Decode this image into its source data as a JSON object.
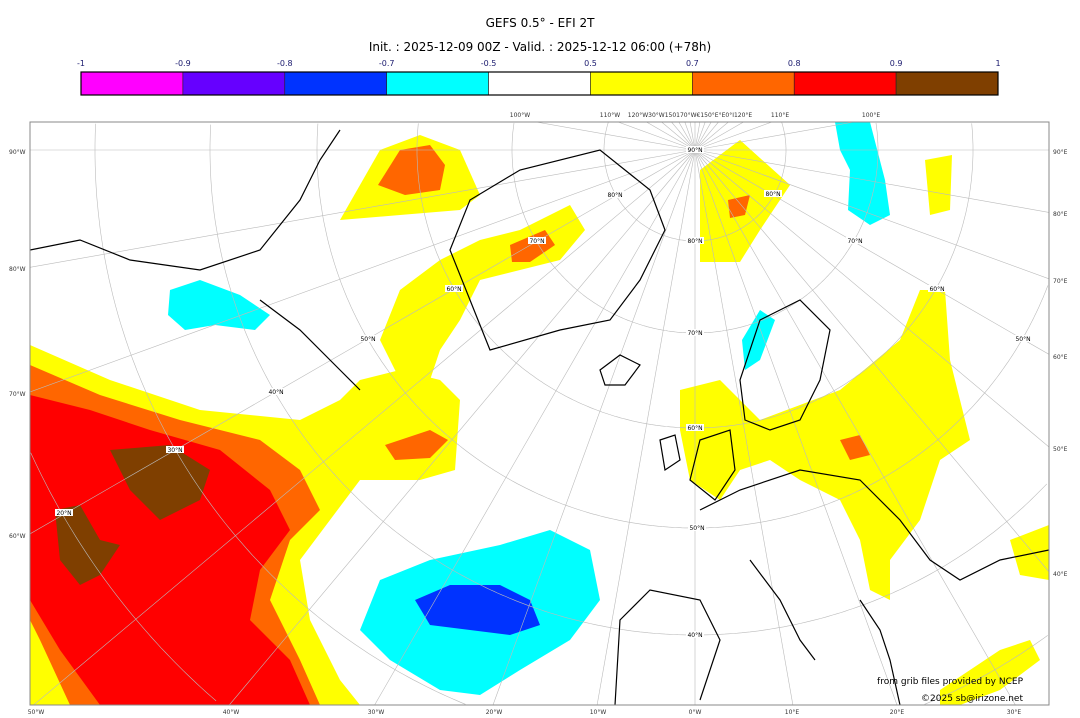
{
  "header": {
    "title": "GEFS 0.5° - EFI 2T",
    "subtitle": "Init. : 2025-12-09 00Z - Valid. : 2025-12-12 06:00 (+78h)"
  },
  "colorbar": {
    "ticks": [
      "-1",
      "-0.9",
      "-0.8",
      "-0.7",
      "-0.5",
      "0.5",
      "0.7",
      "0.8",
      "0.9",
      "1"
    ],
    "colors": [
      "#ff00ff",
      "#6600ff",
      "#0033ff",
      "#00ffff",
      "#ffffff",
      "#ffff00",
      "#ff6600",
      "#ff0000",
      "#7f3f00"
    ]
  },
  "map": {
    "left_labels": [
      "90°W",
      "80°W",
      "70°W",
      "60°W"
    ],
    "right_labels": [
      "90°E",
      "80°E",
      "70°E",
      "60°E",
      "50°E",
      "40°E"
    ],
    "bottom_labels": [
      "50°W",
      "40°W",
      "30°W",
      "20°W",
      "10°W",
      "0°W",
      "10°E",
      "20°E",
      "30°E"
    ],
    "top_labels": [
      "100°W",
      "110°W",
      "120°W30°W150170°W€150°E°E0°I120°E",
      "110°E",
      "100°E"
    ],
    "lat_labels": [
      "90°N",
      "80°N",
      "70°N",
      "60°N",
      "50°N",
      "40°N",
      "80°N",
      "70°N",
      "60°N",
      "50°N",
      "40°N",
      "30°N",
      "20°N",
      "80°N",
      "70°N",
      "60°N",
      "50°N"
    ]
  },
  "credits": {
    "source": "from grib files provided by NCEP",
    "copyright": "©2025 sb@irizone.net"
  }
}
